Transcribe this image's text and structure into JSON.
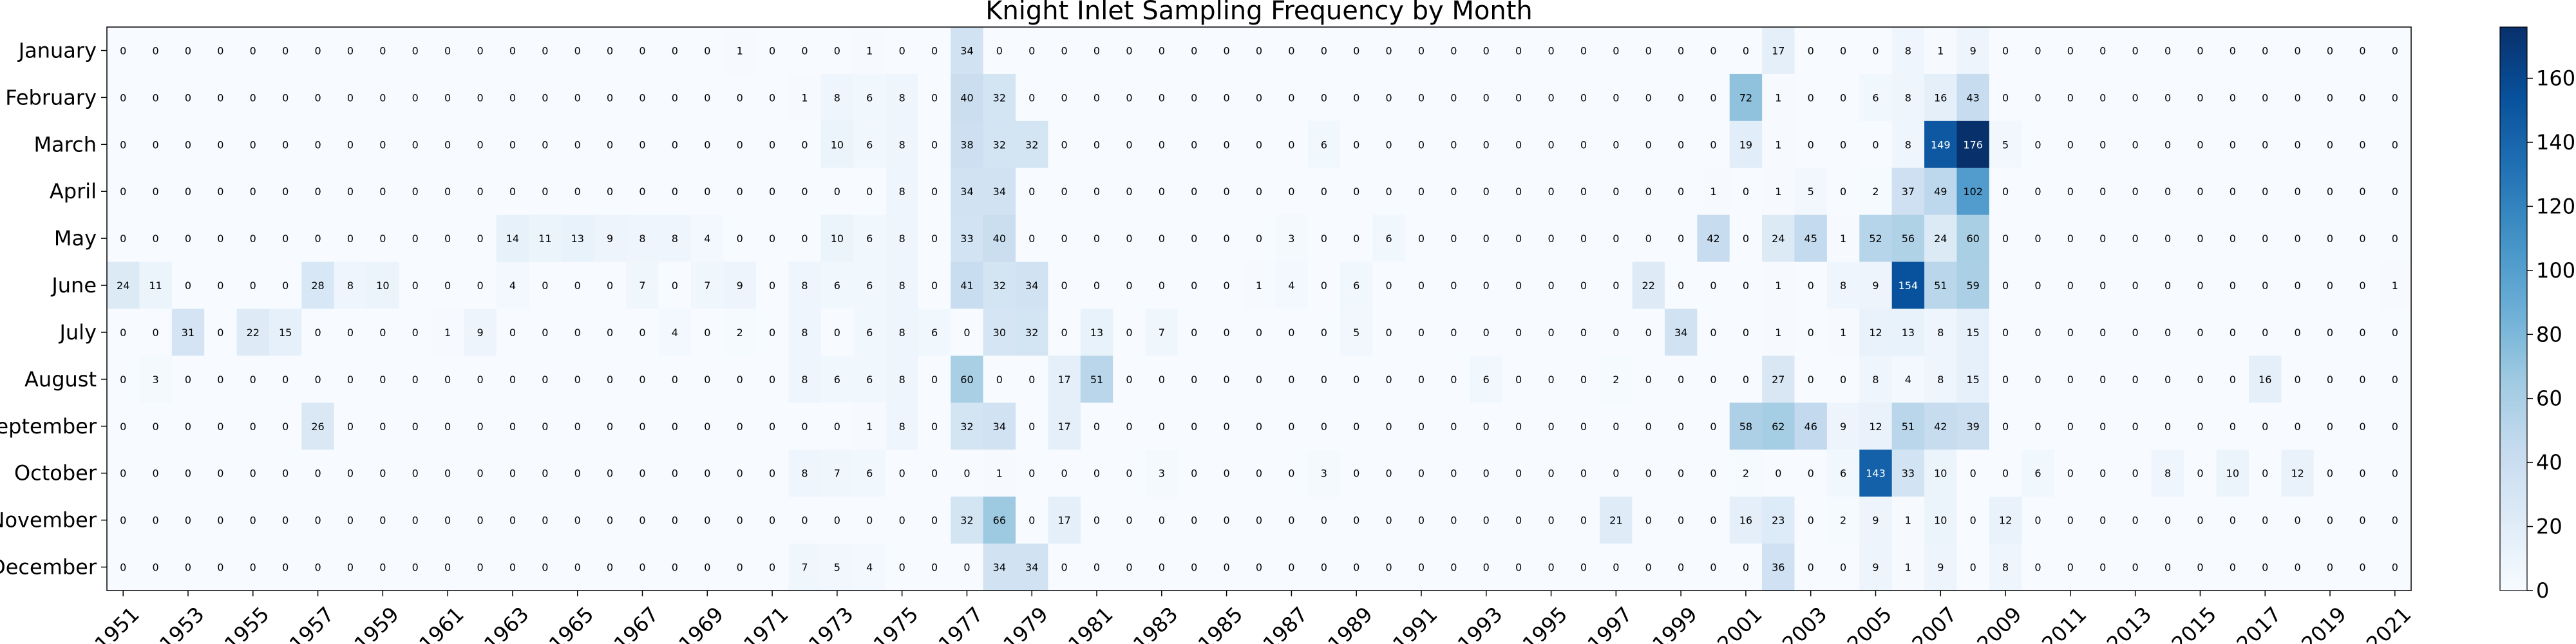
{
  "chart_data": {
    "type": "heatmap",
    "title": "Knight Inlet Sampling Frequency by Month",
    "xlabel": "",
    "ylabel": "",
    "colormap": "Blues",
    "colors": {
      "low": "#f7fbff",
      "high": "#08306b"
    },
    "vmin": 0,
    "vmax": 176,
    "colorbar_ticks": [
      0,
      20,
      40,
      60,
      80,
      100,
      120,
      140,
      160
    ],
    "x_tick_labels": [
      "1951",
      "1953",
      "1955",
      "1957",
      "1959",
      "1961",
      "1963",
      "1965",
      "1967",
      "1969",
      "1971",
      "1973",
      "1975",
      "1977",
      "1979",
      "1981",
      "1983",
      "1985",
      "1987",
      "1989",
      "1991",
      "1993",
      "1995",
      "1997",
      "1999",
      "2001",
      "2003",
      "2005",
      "2007",
      "2009",
      "2011",
      "2013",
      "2015",
      "2017",
      "2019",
      "2021"
    ],
    "years": [
      1951,
      1952,
      1953,
      1954,
      1955,
      1956,
      1957,
      1958,
      1959,
      1960,
      1961,
      1962,
      1963,
      1964,
      1965,
      1966,
      1967,
      1968,
      1969,
      1970,
      1971,
      1972,
      1973,
      1974,
      1975,
      1976,
      1977,
      1978,
      1979,
      1980,
      1981,
      1982,
      1983,
      1984,
      1985,
      1986,
      1987,
      1988,
      1989,
      1990,
      1991,
      1992,
      1993,
      1994,
      1995,
      1996,
      1997,
      1998,
      1999,
      2000,
      2001,
      2002,
      2003,
      2004,
      2005,
      2006,
      2007,
      2008,
      2009,
      2010,
      2011,
      2012,
      2013,
      2014,
      2015,
      2016,
      2017,
      2018,
      2019,
      2020,
      2021
    ],
    "months": [
      "January",
      "February",
      "March",
      "April",
      "May",
      "June",
      "July",
      "August",
      "September",
      "October",
      "November",
      "December"
    ],
    "values": [
      [
        0,
        0,
        0,
        0,
        0,
        0,
        0,
        0,
        0,
        0,
        0,
        0,
        0,
        0,
        0,
        0,
        0,
        0,
        0,
        1,
        0,
        0,
        0,
        1,
        0,
        0,
        34,
        0,
        0,
        0,
        0,
        0,
        0,
        0,
        0,
        0,
        0,
        0,
        0,
        0,
        0,
        0,
        0,
        0,
        0,
        0,
        0,
        0,
        0,
        0,
        0,
        17,
        0,
        0,
        0,
        8,
        1,
        9,
        0,
        0,
        0,
        0,
        0,
        0,
        0,
        0,
        0,
        0,
        0,
        0,
        0
      ],
      [
        0,
        0,
        0,
        0,
        0,
        0,
        0,
        0,
        0,
        0,
        0,
        0,
        0,
        0,
        0,
        0,
        0,
        0,
        0,
        0,
        0,
        1,
        8,
        6,
        8,
        0,
        40,
        32,
        0,
        0,
        0,
        0,
        0,
        0,
        0,
        0,
        0,
        0,
        0,
        0,
        0,
        0,
        0,
        0,
        0,
        0,
        0,
        0,
        0,
        0,
        72,
        1,
        0,
        0,
        6,
        8,
        16,
        43,
        0,
        0,
        0,
        0,
        0,
        0,
        0,
        0,
        0,
        0,
        0,
        0,
        0
      ],
      [
        0,
        0,
        0,
        0,
        0,
        0,
        0,
        0,
        0,
        0,
        0,
        0,
        0,
        0,
        0,
        0,
        0,
        0,
        0,
        0,
        0,
        0,
        10,
        6,
        8,
        0,
        38,
        32,
        32,
        0,
        0,
        0,
        0,
        0,
        0,
        0,
        0,
        6,
        0,
        0,
        0,
        0,
        0,
        0,
        0,
        0,
        0,
        0,
        0,
        0,
        19,
        1,
        0,
        0,
        0,
        8,
        149,
        176,
        5,
        0,
        0,
        0,
        0,
        0,
        0,
        0,
        0,
        0,
        0,
        0,
        0
      ],
      [
        0,
        0,
        0,
        0,
        0,
        0,
        0,
        0,
        0,
        0,
        0,
        0,
        0,
        0,
        0,
        0,
        0,
        0,
        0,
        0,
        0,
        0,
        0,
        0,
        8,
        0,
        34,
        34,
        0,
        0,
        0,
        0,
        0,
        0,
        0,
        0,
        0,
        0,
        0,
        0,
        0,
        0,
        0,
        0,
        0,
        0,
        0,
        0,
        0,
        1,
        0,
        1,
        5,
        0,
        2,
        37,
        49,
        102,
        0,
        0,
        0,
        0,
        0,
        0,
        0,
        0,
        0,
        0,
        0,
        0,
        0
      ],
      [
        0,
        0,
        0,
        0,
        0,
        0,
        0,
        0,
        0,
        0,
        0,
        0,
        14,
        11,
        13,
        9,
        8,
        8,
        4,
        0,
        0,
        0,
        10,
        6,
        8,
        0,
        33,
        40,
        0,
        0,
        0,
        0,
        0,
        0,
        0,
        0,
        3,
        0,
        0,
        6,
        0,
        0,
        0,
        0,
        0,
        0,
        0,
        0,
        0,
        42,
        0,
        24,
        45,
        1,
        52,
        56,
        24,
        60,
        0,
        0,
        0,
        0,
        0,
        0,
        0,
        0,
        0,
        0,
        0,
        0,
        0
      ],
      [
        24,
        11,
        0,
        0,
        0,
        0,
        28,
        8,
        10,
        0,
        0,
        0,
        4,
        0,
        0,
        0,
        7,
        0,
        7,
        9,
        0,
        8,
        6,
        6,
        8,
        0,
        41,
        32,
        34,
        0,
        0,
        0,
        0,
        0,
        0,
        1,
        4,
        0,
        6,
        0,
        0,
        0,
        0,
        0,
        0,
        0,
        0,
        22,
        0,
        0,
        0,
        1,
        0,
        8,
        9,
        154,
        51,
        59,
        0,
        0,
        0,
        0,
        0,
        0,
        0,
        0,
        0,
        0,
        0,
        0,
        1
      ],
      [
        0,
        0,
        31,
        0,
        22,
        15,
        0,
        0,
        0,
        0,
        1,
        9,
        0,
        0,
        0,
        0,
        0,
        4,
        0,
        2,
        0,
        8,
        0,
        6,
        8,
        6,
        0,
        30,
        32,
        0,
        13,
        0,
        7,
        0,
        0,
        0,
        0,
        0,
        5,
        0,
        0,
        0,
        0,
        0,
        0,
        0,
        0,
        0,
        34,
        0,
        0,
        1,
        0,
        1,
        12,
        13,
        8,
        15,
        0,
        0,
        0,
        0,
        0,
        0,
        0,
        0,
        0,
        0,
        0,
        0,
        0
      ],
      [
        0,
        3,
        0,
        0,
        0,
        0,
        0,
        0,
        0,
        0,
        0,
        0,
        0,
        0,
        0,
        0,
        0,
        0,
        0,
        0,
        0,
        8,
        6,
        6,
        8,
        0,
        60,
        0,
        0,
        17,
        51,
        0,
        0,
        0,
        0,
        0,
        0,
        0,
        0,
        0,
        0,
        0,
        6,
        0,
        0,
        0,
        2,
        0,
        0,
        0,
        0,
        27,
        0,
        0,
        8,
        4,
        8,
        15,
        0,
        0,
        0,
        0,
        0,
        0,
        0,
        0,
        16,
        0,
        0,
        0,
        0
      ],
      [
        0,
        0,
        0,
        0,
        0,
        0,
        26,
        0,
        0,
        0,
        0,
        0,
        0,
        0,
        0,
        0,
        0,
        0,
        0,
        0,
        0,
        0,
        0,
        1,
        8,
        0,
        32,
        34,
        0,
        17,
        0,
        0,
        0,
        0,
        0,
        0,
        0,
        0,
        0,
        0,
        0,
        0,
        0,
        0,
        0,
        0,
        0,
        0,
        0,
        0,
        58,
        62,
        46,
        9,
        12,
        51,
        42,
        39,
        0,
        0,
        0,
        0,
        0,
        0,
        0,
        0,
        0,
        0,
        0,
        0,
        0
      ],
      [
        0,
        0,
        0,
        0,
        0,
        0,
        0,
        0,
        0,
        0,
        0,
        0,
        0,
        0,
        0,
        0,
        0,
        0,
        0,
        0,
        0,
        8,
        7,
        6,
        0,
        0,
        0,
        1,
        0,
        0,
        0,
        0,
        3,
        0,
        0,
        0,
        0,
        3,
        0,
        0,
        0,
        0,
        0,
        0,
        0,
        0,
        0,
        0,
        0,
        0,
        2,
        0,
        0,
        6,
        143,
        33,
        10,
        0,
        0,
        6,
        0,
        0,
        0,
        8,
        0,
        10,
        0,
        12,
        0,
        0,
        0
      ],
      [
        0,
        0,
        0,
        0,
        0,
        0,
        0,
        0,
        0,
        0,
        0,
        0,
        0,
        0,
        0,
        0,
        0,
        0,
        0,
        0,
        0,
        0,
        0,
        0,
        0,
        0,
        32,
        66,
        0,
        17,
        0,
        0,
        0,
        0,
        0,
        0,
        0,
        0,
        0,
        0,
        0,
        0,
        0,
        0,
        0,
        0,
        21,
        0,
        0,
        0,
        16,
        23,
        0,
        2,
        9,
        1,
        10,
        0,
        12,
        0,
        0,
        0,
        0,
        0,
        0,
        0,
        0,
        0,
        0,
        0,
        0
      ],
      [
        0,
        0,
        0,
        0,
        0,
        0,
        0,
        0,
        0,
        0,
        0,
        0,
        0,
        0,
        0,
        0,
        0,
        0,
        0,
        0,
        0,
        7,
        5,
        4,
        0,
        0,
        0,
        34,
        34,
        0,
        0,
        0,
        0,
        0,
        0,
        0,
        0,
        0,
        0,
        0,
        0,
        0,
        0,
        0,
        0,
        0,
        0,
        0,
        0,
        0,
        0,
        36,
        0,
        0,
        9,
        1,
        9,
        0,
        8,
        0,
        0,
        0,
        0,
        0,
        0,
        0,
        0,
        0,
        0,
        0,
        0
      ]
    ]
  }
}
